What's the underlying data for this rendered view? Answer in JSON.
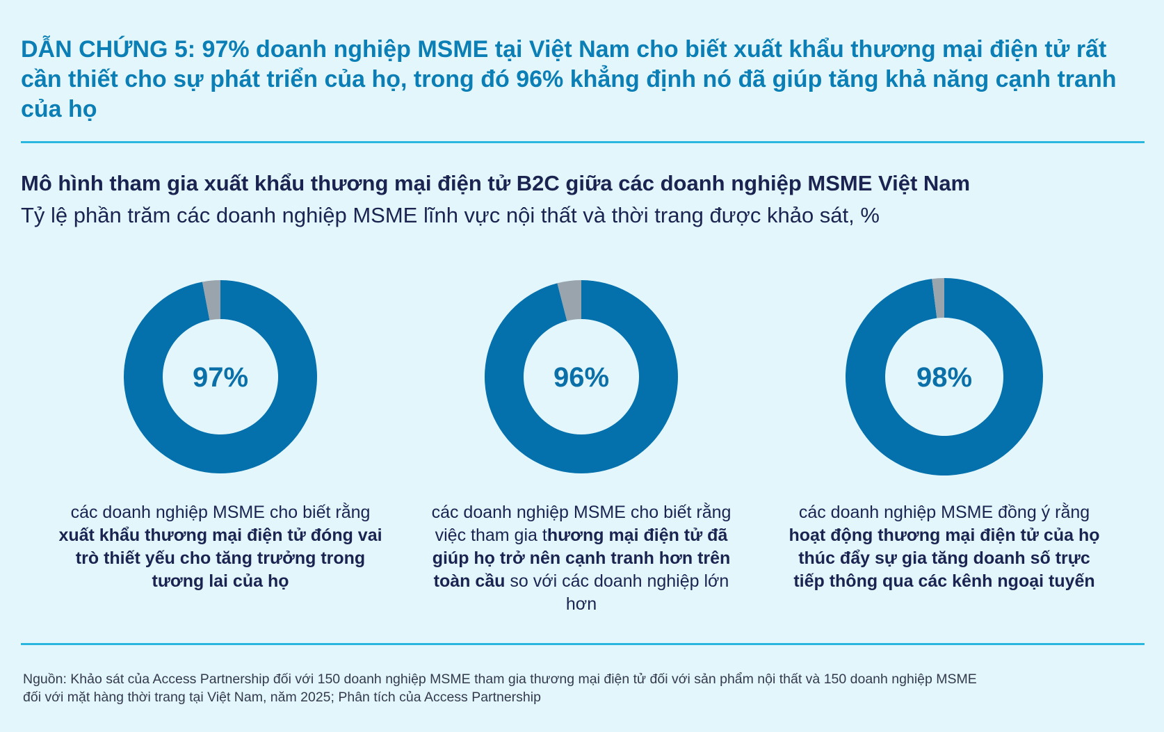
{
  "headline": "DẪN CHỨNG 5: 97% doanh nghiệp MSME tại Việt Nam cho biết xuất khẩu thương mại điện tử rất cần thiết cho sự phát triển của họ, trong đó 96% khẳng định nó đã giúp tăng khả năng cạnh tranh của họ",
  "chart_title": "Mô hình tham gia xuất khẩu thương mại điện tử B2C giữa các doanh nghiệp MSME Việt Nam",
  "chart_subtitle": "Tỷ lệ phần trăm các doanh nghiệp MSME lĩnh vực nội thất và thời trang được khảo sát, %",
  "colors": {
    "primary": "#0471ad",
    "remainder": "#9aa4ad",
    "headline": "#0b7fb5",
    "rule": "#2bb6e0",
    "background": "#e3f6fc"
  },
  "chart_data": [
    {
      "type": "pie",
      "variant": "donut",
      "value": 97,
      "label": "97%",
      "slices": [
        {
          "value": 97
        },
        {
          "value": 3
        }
      ],
      "caption": [
        {
          "text": "các doanh nghiệp MSME cho biết rằng ",
          "bold": false
        },
        {
          "text": "xuất khẩu thương mại điện tử đóng vai trò thiết yếu cho tăng trưởng trong tương lai của họ",
          "bold": true
        }
      ]
    },
    {
      "type": "pie",
      "variant": "donut",
      "value": 96,
      "label": "96%",
      "slices": [
        {
          "value": 96
        },
        {
          "value": 4
        }
      ],
      "caption": [
        {
          "text": "các doanh nghiệp MSME cho biết rằng việc tham gia t",
          "bold": false
        },
        {
          "text": "hương mại điện tử đã giúp họ trở nên cạnh tranh hơn trên toàn cầu",
          "bold": true
        },
        {
          "text": " so với các doanh nghiệp lớn hơn",
          "bold": false
        }
      ]
    },
    {
      "type": "pie",
      "variant": "donut",
      "value": 98,
      "label": "98%",
      "slices": [
        {
          "value": 98
        },
        {
          "value": 2
        }
      ],
      "caption": [
        {
          "text": "các doanh nghiệp MSME đồng ý rằng ",
          "bold": false
        },
        {
          "text": "hoạt động thương mại điện tử của họ thúc đẩy sự gia tăng doanh số trực tiếp thông qua các kênh ngoại tuyến",
          "bold": true
        }
      ]
    }
  ],
  "source": "Nguồn: Khảo sát của Access Partnership đối với 150 doanh nghiệp MSME tham gia thương mại điện tử đối với sản phẩm nội thất và 150 doanh nghiệp MSME đối với mặt hàng thời trang tại Việt Nam, năm 2025; Phân tích của Access Partnership"
}
